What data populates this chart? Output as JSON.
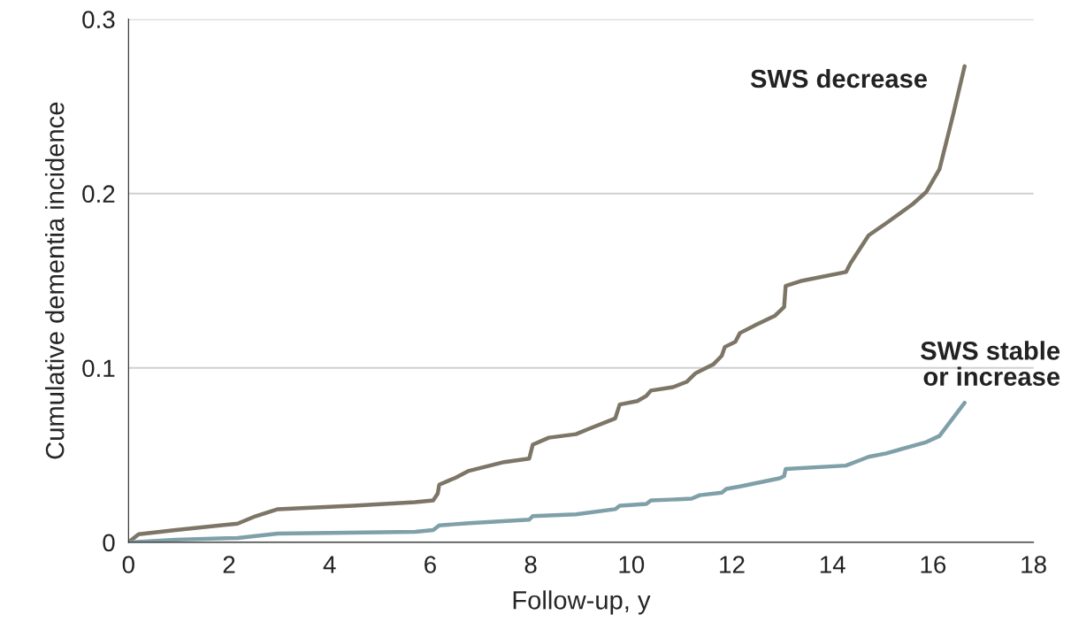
{
  "chart_data": {
    "type": "line",
    "xlabel": "Follow-up, y",
    "ylabel": "Cumulative dementia incidence",
    "xlim": [
      0,
      18
    ],
    "xticks": [
      0,
      2,
      4,
      6,
      8,
      10,
      12,
      14,
      16,
      18
    ],
    "ylim": [
      0,
      0.3
    ],
    "yticks": [
      0,
      0.1,
      0.2,
      0.3
    ],
    "grid": "y",
    "legend": false,
    "marker": "none",
    "line_style": "solid",
    "series": [
      {
        "name": "SWS decrease",
        "color": "#7d7667",
        "x": [
          0,
          0.2,
          0.94,
          2.17,
          2.53,
          2.97,
          4.47,
          5.7,
          6.06,
          6.15,
          6.18,
          6.5,
          6.77,
          7.47,
          7.97,
          8.04,
          8.36,
          8.9,
          9.15,
          9.68,
          9.77,
          10.12,
          10.3,
          10.39,
          10.83,
          11.1,
          11.28,
          11.63,
          11.8,
          11.86,
          12.07,
          12.16,
          12.5,
          12.86,
          13.04,
          13.07,
          13.4,
          14.27,
          14.36,
          14.54,
          14.72,
          15.07,
          15.6,
          15.87,
          16.13,
          16.4,
          16.63
        ],
        "values": [
          0,
          0.0046,
          0.007,
          0.0107,
          0.015,
          0.019,
          0.021,
          0.023,
          0.024,
          0.028,
          0.033,
          0.037,
          0.041,
          0.046,
          0.048,
          0.056,
          0.06,
          0.062,
          0.065,
          0.071,
          0.079,
          0.081,
          0.084,
          0.087,
          0.089,
          0.092,
          0.097,
          0.102,
          0.107,
          0.112,
          0.115,
          0.12,
          0.125,
          0.13,
          0.135,
          0.147,
          0.15,
          0.155,
          0.16,
          0.168,
          0.176,
          0.183,
          0.194,
          0.201,
          0.214,
          0.245,
          0.273
        ]
      },
      {
        "name": "SWS stable\nor increase",
        "color": "#7fa0a8",
        "x": [
          0,
          0.94,
          2.17,
          2.97,
          5.7,
          6.06,
          6.18,
          6.77,
          7.97,
          8.04,
          8.9,
          9.68,
          9.77,
          10.3,
          10.39,
          11.2,
          11.36,
          11.8,
          11.89,
          12.16,
          12.95,
          13.04,
          13.07,
          14.27,
          14.54,
          14.72,
          15.07,
          15.87,
          16.13,
          16.63
        ],
        "values": [
          0,
          0.0015,
          0.0025,
          0.005,
          0.006,
          0.007,
          0.0097,
          0.011,
          0.013,
          0.015,
          0.016,
          0.019,
          0.021,
          0.022,
          0.024,
          0.025,
          0.027,
          0.0285,
          0.0306,
          0.032,
          0.0367,
          0.038,
          0.042,
          0.044,
          0.047,
          0.049,
          0.051,
          0.0575,
          0.061,
          0.08
        ]
      }
    ]
  }
}
